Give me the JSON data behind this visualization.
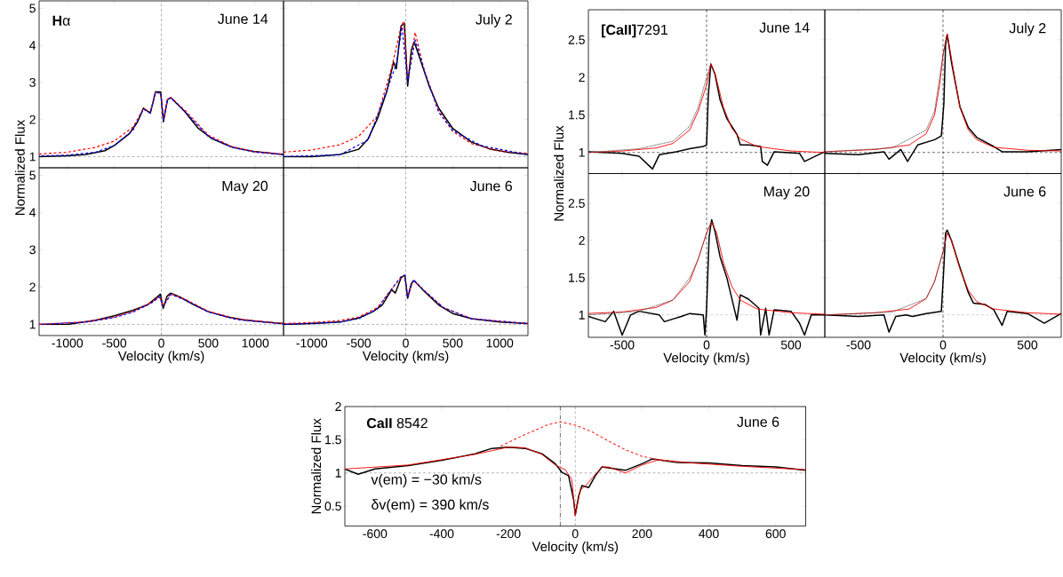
{
  "chart_data": [
    {
      "type": "line",
      "title": "June 14",
      "annotations": [
        "**H**α"
      ],
      "xlim": [
        -1300,
        1300
      ],
      "ylim": [
        0.7,
        5.2
      ],
      "xticks": [
        -1000,
        -500,
        0,
        500,
        1000
      ],
      "yticks": [
        1,
        2,
        3,
        4,
        5
      ],
      "tick_labels": "y",
      "ref_lines": [
        {
          "axis": "x",
          "value": 0,
          "color": "#808080",
          "line_style": "dashed"
        },
        {
          "axis": "y",
          "value": 1,
          "color": "#808080",
          "line_style": "dashed"
        }
      ],
      "series": [
        {
          "color": "#000000",
          "x": [
            -1300,
            -1000,
            -800,
            -600,
            -500,
            -340,
            -250,
            -190,
            -117,
            -62,
            -7,
            22,
            66,
            102,
            248,
            394,
            541,
            760,
            979,
            1198,
            1300
          ],
          "values": [
            1.0,
            1.02,
            1.06,
            1.16,
            1.3,
            1.62,
            1.95,
            2.31,
            2.17,
            2.75,
            2.75,
            1.94,
            2.54,
            2.59,
            2.22,
            1.76,
            1.48,
            1.25,
            1.14,
            1.08,
            1.05
          ]
        },
        {
          "color": "#ff0000",
          "line_style": "dashed",
          "x": [
            -1300,
            -1000,
            -700,
            -500,
            -300,
            -190,
            -117,
            -62,
            -7,
            22,
            66,
            102,
            250,
            500,
            750,
            1000,
            1300
          ],
          "values": [
            1.07,
            1.12,
            1.25,
            1.42,
            1.8,
            2.3,
            2.2,
            2.72,
            2.72,
            2.0,
            2.55,
            2.6,
            2.25,
            1.58,
            1.27,
            1.13,
            1.07
          ]
        },
        {
          "color": "#0000ff",
          "line_style": "dashed",
          "x": [
            -1300,
            -1000,
            -700,
            -500,
            -300,
            -190,
            -117,
            -62,
            -7,
            22,
            66,
            102,
            250,
            500,
            750,
            1000,
            1300
          ],
          "values": [
            1.02,
            1.04,
            1.12,
            1.3,
            1.72,
            2.28,
            2.18,
            2.72,
            2.72,
            1.98,
            2.55,
            2.58,
            2.22,
            1.55,
            1.25,
            1.12,
            1.06
          ]
        }
      ]
    },
    {
      "type": "line",
      "title": "July 2",
      "xlim": [
        -1300,
        1300
      ],
      "ylim": [
        0.7,
        5.2
      ],
      "xticks": [
        -1000,
        -500,
        0,
        500,
        1000
      ],
      "yticks": [
        1,
        2,
        3,
        4,
        5
      ],
      "tick_labels": false,
      "ref_lines": [
        {
          "axis": "x",
          "value": 0,
          "color": "#808080",
          "line_style": "dashed"
        },
        {
          "axis": "y",
          "value": 1,
          "color": "#808080",
          "line_style": "dashed"
        }
      ],
      "series": [
        {
          "color": "#000000",
          "x": [
            -1300,
            -1000,
            -700,
            -500,
            -400,
            -300,
            -200,
            -130,
            -100,
            -50,
            -15,
            0,
            20,
            60,
            90,
            150,
            250,
            350,
            500,
            700,
            900,
            1100,
            1300
          ],
          "values": [
            1.0,
            1.0,
            1.06,
            1.2,
            1.48,
            2.03,
            2.77,
            3.55,
            3.37,
            4.52,
            4.6,
            3.9,
            2.9,
            3.88,
            4.1,
            3.65,
            2.9,
            2.31,
            1.76,
            1.39,
            1.2,
            1.11,
            1.06
          ]
        },
        {
          "color": "#ff0000",
          "line_style": "dashed",
          "x": [
            -1300,
            -1000,
            -700,
            -500,
            -300,
            -150,
            -50,
            -20,
            20,
            100,
            200,
            350,
            500,
            700,
            1000,
            1300
          ],
          "values": [
            1.12,
            1.18,
            1.32,
            1.55,
            2.1,
            3.4,
            4.5,
            4.65,
            3.0,
            4.35,
            3.3,
            2.25,
            1.68,
            1.35,
            1.15,
            1.09
          ]
        },
        {
          "color": "#0000ff",
          "line_style": "dashed",
          "x": [
            -1300,
            -700,
            -400,
            -200,
            -100,
            -40,
            0,
            20,
            100,
            200,
            350,
            500,
            800,
            1300
          ],
          "values": [
            1.0,
            1.05,
            1.45,
            2.8,
            3.5,
            4.5,
            3.5,
            3.0,
            4.15,
            3.3,
            2.2,
            1.7,
            1.3,
            1.05
          ]
        }
      ]
    },
    {
      "type": "line",
      "title": "May 20",
      "xlabel": "Velocity (km/s)",
      "ylabel": "Normalized Flux",
      "xlim": [
        -1300,
        1300
      ],
      "ylim": [
        0.7,
        5.2
      ],
      "xticks": [
        -1000,
        -500,
        0,
        500,
        1000
      ],
      "yticks": [
        1,
        2,
        3,
        4,
        5
      ],
      "ref_lines": [
        {
          "axis": "x",
          "value": 0,
          "color": "#808080",
          "line_style": "dashed"
        },
        {
          "axis": "y",
          "value": 1,
          "color": "#808080",
          "line_style": "dashed"
        }
      ],
      "series": [
        {
          "color": "#000000",
          "x": [
            -1300,
            -1000,
            -700,
            -500,
            -300,
            -150,
            -50,
            -10,
            20,
            60,
            100,
            200,
            350,
            500,
            700,
            900,
            1100,
            1300
          ],
          "values": [
            1.0,
            1.0,
            1.11,
            1.23,
            1.38,
            1.52,
            1.72,
            1.81,
            1.43,
            1.75,
            1.84,
            1.73,
            1.52,
            1.34,
            1.2,
            1.11,
            1.06,
            1.02
          ]
        },
        {
          "color": "#ff0000",
          "line_style": "dashed",
          "x": [
            -1300,
            -800,
            -500,
            -300,
            -100,
            -20,
            20,
            100,
            250,
            500,
            800,
            1300
          ],
          "values": [
            1.0,
            1.07,
            1.2,
            1.35,
            1.6,
            1.75,
            1.5,
            1.82,
            1.68,
            1.35,
            1.15,
            1.02
          ]
        },
        {
          "color": "#0000ff",
          "line_style": "dashed",
          "x": [
            -1300,
            -800,
            -500,
            -300,
            -100,
            -20,
            20,
            100,
            250,
            500,
            800,
            1300
          ],
          "values": [
            1.0,
            1.06,
            1.18,
            1.33,
            1.58,
            1.74,
            1.48,
            1.8,
            1.66,
            1.33,
            1.13,
            1.01
          ]
        }
      ]
    },
    {
      "type": "line",
      "title": "June 6",
      "xlabel": "Velocity (km/s)",
      "xlim": [
        -1300,
        1300
      ],
      "ylim": [
        0.7,
        5.2
      ],
      "xticks": [
        -1000,
        -500,
        0,
        500,
        1000
      ],
      "yticks": [
        1,
        2,
        3,
        4,
        5
      ],
      "tick_labels": "x",
      "ref_lines": [
        {
          "axis": "x",
          "value": 0,
          "color": "#808080",
          "line_style": "dashed"
        },
        {
          "axis": "y",
          "value": 1,
          "color": "#808080",
          "line_style": "dashed"
        }
      ],
      "series": [
        {
          "color": "#000000",
          "x": [
            -1300,
            -1000,
            -700,
            -500,
            -350,
            -250,
            -150,
            -110,
            -50,
            -10,
            20,
            60,
            90,
            200,
            350,
            500,
            700,
            1000,
            1300
          ],
          "values": [
            1.0,
            1.02,
            1.06,
            1.17,
            1.34,
            1.52,
            1.93,
            1.84,
            2.25,
            2.32,
            1.7,
            2.1,
            2.17,
            1.88,
            1.52,
            1.29,
            1.15,
            1.06,
            1.02
          ]
        },
        {
          "color": "#ff0000",
          "line_style": "dashed",
          "x": [
            -1300,
            -1000,
            -700,
            -500,
            -300,
            -150,
            -50,
            -10,
            20,
            80,
            200,
            400,
            700,
            1300
          ],
          "values": [
            1.02,
            1.05,
            1.1,
            1.2,
            1.45,
            1.95,
            2.25,
            2.3,
            1.75,
            2.18,
            1.9,
            1.45,
            1.15,
            1.02
          ]
        },
        {
          "color": "#0000ff",
          "line_style": "dashed",
          "x": [
            -1300,
            -700,
            -500,
            -300,
            -150,
            -50,
            -10,
            20,
            80,
            200,
            400,
            700,
            1300
          ],
          "values": [
            1.0,
            1.06,
            1.15,
            1.42,
            1.95,
            2.28,
            2.32,
            1.72,
            2.2,
            1.9,
            1.45,
            1.15,
            1.02
          ]
        }
      ]
    },
    {
      "type": "line",
      "title": "June 14",
      "annotations": [
        "**[CaII]**7291"
      ],
      "xlim": [
        -700,
        700
      ],
      "ylim": [
        0.72,
        2.9
      ],
      "xticks": [
        -500,
        0,
        500
      ],
      "yticks": [
        1,
        1.5,
        2,
        2.5
      ],
      "tick_labels": "y",
      "ref_lines": [
        {
          "axis": "x",
          "value": 0,
          "color": "#000000",
          "line_style": "dashed"
        },
        {
          "axis": "y",
          "value": 1,
          "color": "#000000",
          "line_style": "dashed"
        }
      ],
      "series": [
        {
          "color": "#000000",
          "x": [
            -700,
            -500,
            -400,
            -320,
            -280,
            -200,
            -180,
            -100,
            -20,
            0,
            10,
            25,
            50,
            80,
            120,
            180,
            200,
            250,
            320,
            330,
            360,
            400,
            550,
            580,
            700
          ],
          "values": [
            1.01,
            0.99,
            0.95,
            0.78,
            0.97,
            null,
            1.01,
            1.05,
            1.08,
            1.1,
            1.75,
            2.18,
            2.04,
            1.7,
            1.45,
            1.24,
            1.1,
            1.1,
            1.08,
            0.88,
            0.83,
            1.01,
            0.99,
            0.88,
            1.01
          ]
        },
        {
          "color": "#ff0000",
          "x": [
            -700,
            -500,
            -300,
            -200,
            -100,
            -50,
            0,
            25,
            50,
            100,
            150,
            200,
            300,
            500,
            700
          ],
          "values": [
            1.0,
            1.02,
            1.06,
            1.12,
            1.3,
            1.55,
            1.9,
            2.18,
            2.05,
            1.6,
            1.32,
            1.18,
            1.08,
            1.02,
            1.0
          ]
        },
        {
          "color": "#404040",
          "line_style": "dotted",
          "x": [
            -700,
            -400,
            -200,
            -100,
            -50,
            0,
            25
          ],
          "values": [
            1.0,
            1.05,
            1.15,
            1.35,
            1.6,
            2.0,
            2.18
          ]
        }
      ]
    },
    {
      "type": "line",
      "title": "July 2",
      "xlim": [
        -700,
        700
      ],
      "ylim": [
        0.72,
        2.9
      ],
      "xticks": [
        -500,
        0,
        500
      ],
      "yticks": [
        1,
        1.5,
        2,
        2.5
      ],
      "tick_labels": false,
      "ref_lines": [
        {
          "axis": "x",
          "value": 0,
          "color": "#000000",
          "line_style": "dashed"
        },
        {
          "axis": "y",
          "value": 1,
          "color": "#000000",
          "line_style": "dashed"
        }
      ],
      "series": [
        {
          "color": "#000000",
          "x": [
            -700,
            -500,
            -350,
            -320,
            -250,
            -210,
            -150,
            -50,
            -10,
            5,
            15,
            25,
            50,
            100,
            150,
            200,
            300,
            350,
            500,
            700
          ],
          "values": [
            0.99,
            0.97,
            1.01,
            0.91,
            1.04,
            0.88,
            1.1,
            1.17,
            1.22,
            1.65,
            2.43,
            2.57,
            2.2,
            1.61,
            1.33,
            1.2,
            1.08,
            1.01,
            1.01,
            1.04
          ]
        },
        {
          "color": "#ff0000",
          "x": [
            -700,
            -400,
            -200,
            -100,
            -50,
            -20,
            0,
            25,
            50,
            100,
            150,
            200,
            300,
            500,
            700
          ],
          "values": [
            1.01,
            1.04,
            1.1,
            1.25,
            1.5,
            1.9,
            2.3,
            2.58,
            2.25,
            1.6,
            1.3,
            1.17,
            1.07,
            1.03,
            1.02
          ]
        },
        {
          "color": "#404040",
          "line_style": "dotted",
          "x": [
            -700,
            -300,
            -100,
            -50,
            0,
            20
          ],
          "values": [
            1.01,
            1.06,
            1.3,
            1.55,
            2.3,
            2.55
          ]
        }
      ]
    },
    {
      "type": "line",
      "title": "May 20",
      "xlabel": "Velocity (km/s)",
      "ylabel": "Normalized Flux",
      "xlim": [
        -700,
        700
      ],
      "ylim": [
        0.7,
        2.9
      ],
      "xticks": [
        -500,
        0,
        500
      ],
      "yticks": [
        1,
        1.5,
        2,
        2.5
      ],
      "ref_lines": [
        {
          "axis": "x",
          "value": 0,
          "color": "#000000",
          "line_style": "dashed"
        },
        {
          "axis": "y",
          "value": 1,
          "color": "#808080",
          "line_style": "dashed"
        }
      ],
      "series": [
        {
          "color": "#000000",
          "x": [
            -700,
            -600,
            -550,
            -500,
            -450,
            -400,
            -330,
            -280,
            -250,
            -200,
            -150,
            -100,
            -20,
            -10,
            0,
            15,
            30,
            50,
            80,
            120,
            180,
            200,
            250,
            310,
            320,
            350,
            370,
            400,
            500,
            550,
            580,
            620,
            700
          ],
          "values": [
            0.98,
            0.91,
            1.05,
            0.73,
            1.0,
            1.05,
            null,
            1.0,
            0.91,
            null,
            0.98,
            1.02,
            1.0,
            0.73,
            1.09,
            2.05,
            2.28,
            2.12,
            1.78,
            1.5,
            0.93,
            1.27,
            1.21,
            1.09,
            0.73,
            1.09,
            0.73,
            1.07,
            1.05,
            0.89,
            0.73,
            1.0,
            1.0
          ]
        },
        {
          "color": "#ff0000",
          "x": [
            -700,
            -500,
            -300,
            -200,
            -100,
            -50,
            0,
            30,
            60,
            100,
            150,
            200,
            300,
            500,
            700
          ],
          "values": [
            1.02,
            1.04,
            1.1,
            1.2,
            1.45,
            1.75,
            2.1,
            2.25,
            2.1,
            1.7,
            1.38,
            1.2,
            1.08,
            1.03,
            1.01
          ]
        },
        {
          "color": "#404040",
          "line_style": "dotted",
          "x": [
            -700,
            -400,
            -200,
            -100,
            -50,
            0,
            25
          ],
          "values": [
            1.0,
            1.05,
            1.2,
            1.5,
            1.75,
            2.1,
            2.25
          ]
        }
      ]
    },
    {
      "type": "line",
      "title": "June 6",
      "xlabel": "Velocity (km/s)",
      "xlim": [
        -700,
        700
      ],
      "ylim": [
        0.7,
        2.9
      ],
      "xticks": [
        -500,
        0,
        500
      ],
      "yticks": [
        1,
        1.5,
        2,
        2.5
      ],
      "tick_labels": "x",
      "ref_lines": [
        {
          "axis": "x",
          "value": 0,
          "color": "#000000",
          "line_style": "dashed"
        },
        {
          "axis": "y",
          "value": 1,
          "color": "#808080",
          "line_style": "dashed"
        }
      ],
      "series": [
        {
          "color": "#000000",
          "x": [
            -700,
            -500,
            -350,
            -320,
            -280,
            -220,
            -200,
            -180,
            -100,
            -10,
            5,
            15,
            25,
            50,
            100,
            150,
            180,
            250,
            300,
            350,
            380,
            500,
            600,
            700
          ],
          "values": [
            1.0,
            0.98,
            1.0,
            0.77,
            0.98,
            1.0,
            null,
            0.98,
            1.02,
            1.05,
            1.64,
            2.1,
            2.14,
            2.0,
            1.64,
            1.3,
            1.16,
            1.14,
            1.07,
            0.86,
            1.05,
            1.02,
            0.89,
            1.02
          ]
        },
        {
          "color": "#ff0000",
          "x": [
            -700,
            -400,
            -200,
            -100,
            -50,
            0,
            25,
            50,
            100,
            150,
            200,
            300,
            500,
            700
          ],
          "values": [
            1.0,
            1.03,
            1.08,
            1.22,
            1.45,
            1.85,
            2.1,
            2.0,
            1.62,
            1.33,
            1.18,
            1.08,
            1.03,
            1.01
          ]
        },
        {
          "color": "#404040",
          "line_style": "dotted",
          "x": [
            -700,
            -300,
            -100,
            -50,
            0,
            20
          ],
          "values": [
            1.0,
            1.04,
            1.22,
            1.45,
            1.85,
            2.08
          ]
        }
      ]
    },
    {
      "type": "line",
      "title": "June 6",
      "xlabel": "Velocity (km/s)",
      "ylabel": "Normalized Flux",
      "annotations": [
        "**CaII** 8542",
        "v(em) = −30 km/s",
        "δv(em) = 390 km/s"
      ],
      "xlim": [
        -690,
        690
      ],
      "ylim": [
        0.2,
        2
      ],
      "xticks": [
        -600,
        -400,
        -200,
        0,
        200,
        400,
        600
      ],
      "yticks": [
        0.5,
        1,
        1.5,
        2
      ],
      "ref_lines": [
        {
          "axis": "x",
          "value": 0,
          "color": "#808080",
          "line_style": "dashed"
        },
        {
          "axis": "y",
          "value": 1,
          "color": "#808080",
          "line_style": "dashed"
        },
        {
          "axis": "x",
          "value": -45,
          "color": "#000000",
          "line_style": "dashdot"
        }
      ],
      "series": [
        {
          "color": "#000000",
          "x": [
            -690,
            -650,
            -600,
            -500,
            -400,
            -300,
            -250,
            -200,
            -150,
            -100,
            -60,
            -40,
            -20,
            -5,
            0,
            10,
            20,
            40,
            60,
            80,
            150,
            200,
            230,
            300,
            400,
            500,
            600,
            690
          ],
          "values": [
            1.06,
            0.98,
            1.06,
            1.11,
            1.19,
            1.29,
            1.37,
            1.39,
            1.37,
            1.29,
            1.14,
            1.01,
            0.96,
            0.6,
            0.37,
            0.65,
            0.81,
            0.78,
            0.96,
            1.09,
            1.04,
            1.14,
            1.21,
            1.16,
            1.15,
            1.11,
            1.09,
            1.04
          ]
        },
        {
          "color": "#ff0000",
          "x": [
            -690,
            -500,
            -300,
            -200,
            -150,
            -100,
            -60,
            -30,
            -10,
            0,
            15,
            30,
            50,
            80,
            100,
            150,
            200,
            250,
            350,
            500,
            690
          ],
          "values": [
            1.06,
            1.12,
            1.28,
            1.39,
            1.38,
            1.28,
            1.12,
            1.05,
            0.9,
            0.35,
            0.75,
            0.8,
            0.92,
            1.09,
            1.09,
            1.0,
            1.12,
            1.2,
            1.15,
            1.1,
            1.05
          ]
        },
        {
          "color": "#ff3333",
          "line_style": "dashed",
          "x": [
            -230,
            -150,
            -80,
            -45,
            0,
            50,
            100,
            150,
            200,
            250,
            300
          ],
          "values": [
            1.39,
            1.58,
            1.73,
            1.77,
            1.72,
            1.62,
            1.48,
            1.35,
            1.25,
            1.2,
            1.17
          ]
        }
      ]
    }
  ]
}
